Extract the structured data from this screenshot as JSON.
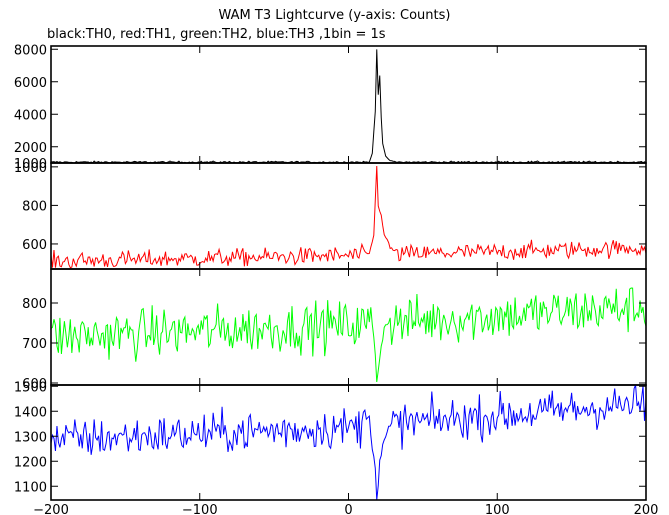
{
  "chart_data": {
    "type": "line",
    "title": "WAM T3 Lightcurve (y-axis: Counts)",
    "subtitle": "black:TH0, red:TH1, green:TH2, blue:TH3 ,1bin = 1s",
    "xlim": [
      -200,
      200
    ],
    "x_ticks": [
      "−200",
      "−100",
      "0",
      "100",
      "200"
    ],
    "grid": false,
    "panels": [
      {
        "channel": "TH0",
        "color": "#000000",
        "ylim": [
          1000,
          8200
        ],
        "y_ticks": [
          "1000",
          "2000",
          "4000",
          "6000",
          "8000"
        ],
        "baseline": [
          [
            -200,
            1050
          ],
          [
            200,
            1050
          ]
        ],
        "noise": 60,
        "event": [
          [
            14,
            1050
          ],
          [
            16,
            1600
          ],
          [
            18,
            4200
          ],
          [
            19,
            8000
          ],
          [
            20,
            5200
          ],
          [
            21,
            6400
          ],
          [
            22,
            3800
          ],
          [
            23,
            2200
          ],
          [
            25,
            1400
          ],
          [
            28,
            1150
          ],
          [
            32,
            1060
          ]
        ]
      },
      {
        "channel": "TH1",
        "color": "#ff0000",
        "ylim": [
          470,
          1020
        ],
        "y_ticks": [
          "600",
          "800",
          "1000"
        ],
        "baseline": [
          [
            -200,
            510
          ],
          [
            0,
            540
          ],
          [
            200,
            580
          ]
        ],
        "noise": 45,
        "event": [
          [
            14,
            545
          ],
          [
            17,
            650
          ],
          [
            19,
            1000
          ],
          [
            20,
            790
          ],
          [
            22,
            760
          ],
          [
            24,
            650
          ],
          [
            28,
            580
          ],
          [
            32,
            560
          ]
        ]
      },
      {
        "channel": "TH2",
        "color": "#00ff00",
        "ylim": [
          595,
          885
        ],
        "y_ticks": [
          "600",
          "700",
          "800"
        ],
        "baseline": [
          [
            -200,
            715
          ],
          [
            0,
            745
          ],
          [
            200,
            790
          ]
        ],
        "noise": 60,
        "event": [
          [
            16,
            750
          ],
          [
            18,
            680
          ],
          [
            19,
            600
          ],
          [
            20,
            640
          ],
          [
            22,
            700
          ],
          [
            26,
            760
          ]
        ]
      },
      {
        "channel": "TH3",
        "color": "#0000ff",
        "ylim": [
          1045,
          1505
        ],
        "y_ticks": [
          "1100",
          "1200",
          "1300",
          "1400",
          "1500"
        ],
        "baseline": [
          [
            -200,
            1285
          ],
          [
            0,
            1335
          ],
          [
            200,
            1430
          ]
        ],
        "noise": 80,
        "event": [
          [
            10,
            1390
          ],
          [
            14,
            1380
          ],
          [
            16,
            1270
          ],
          [
            18,
            1180
          ],
          [
            19,
            1050
          ],
          [
            20,
            1100
          ],
          [
            21,
            1200
          ],
          [
            24,
            1280
          ],
          [
            28,
            1340
          ]
        ]
      }
    ]
  }
}
